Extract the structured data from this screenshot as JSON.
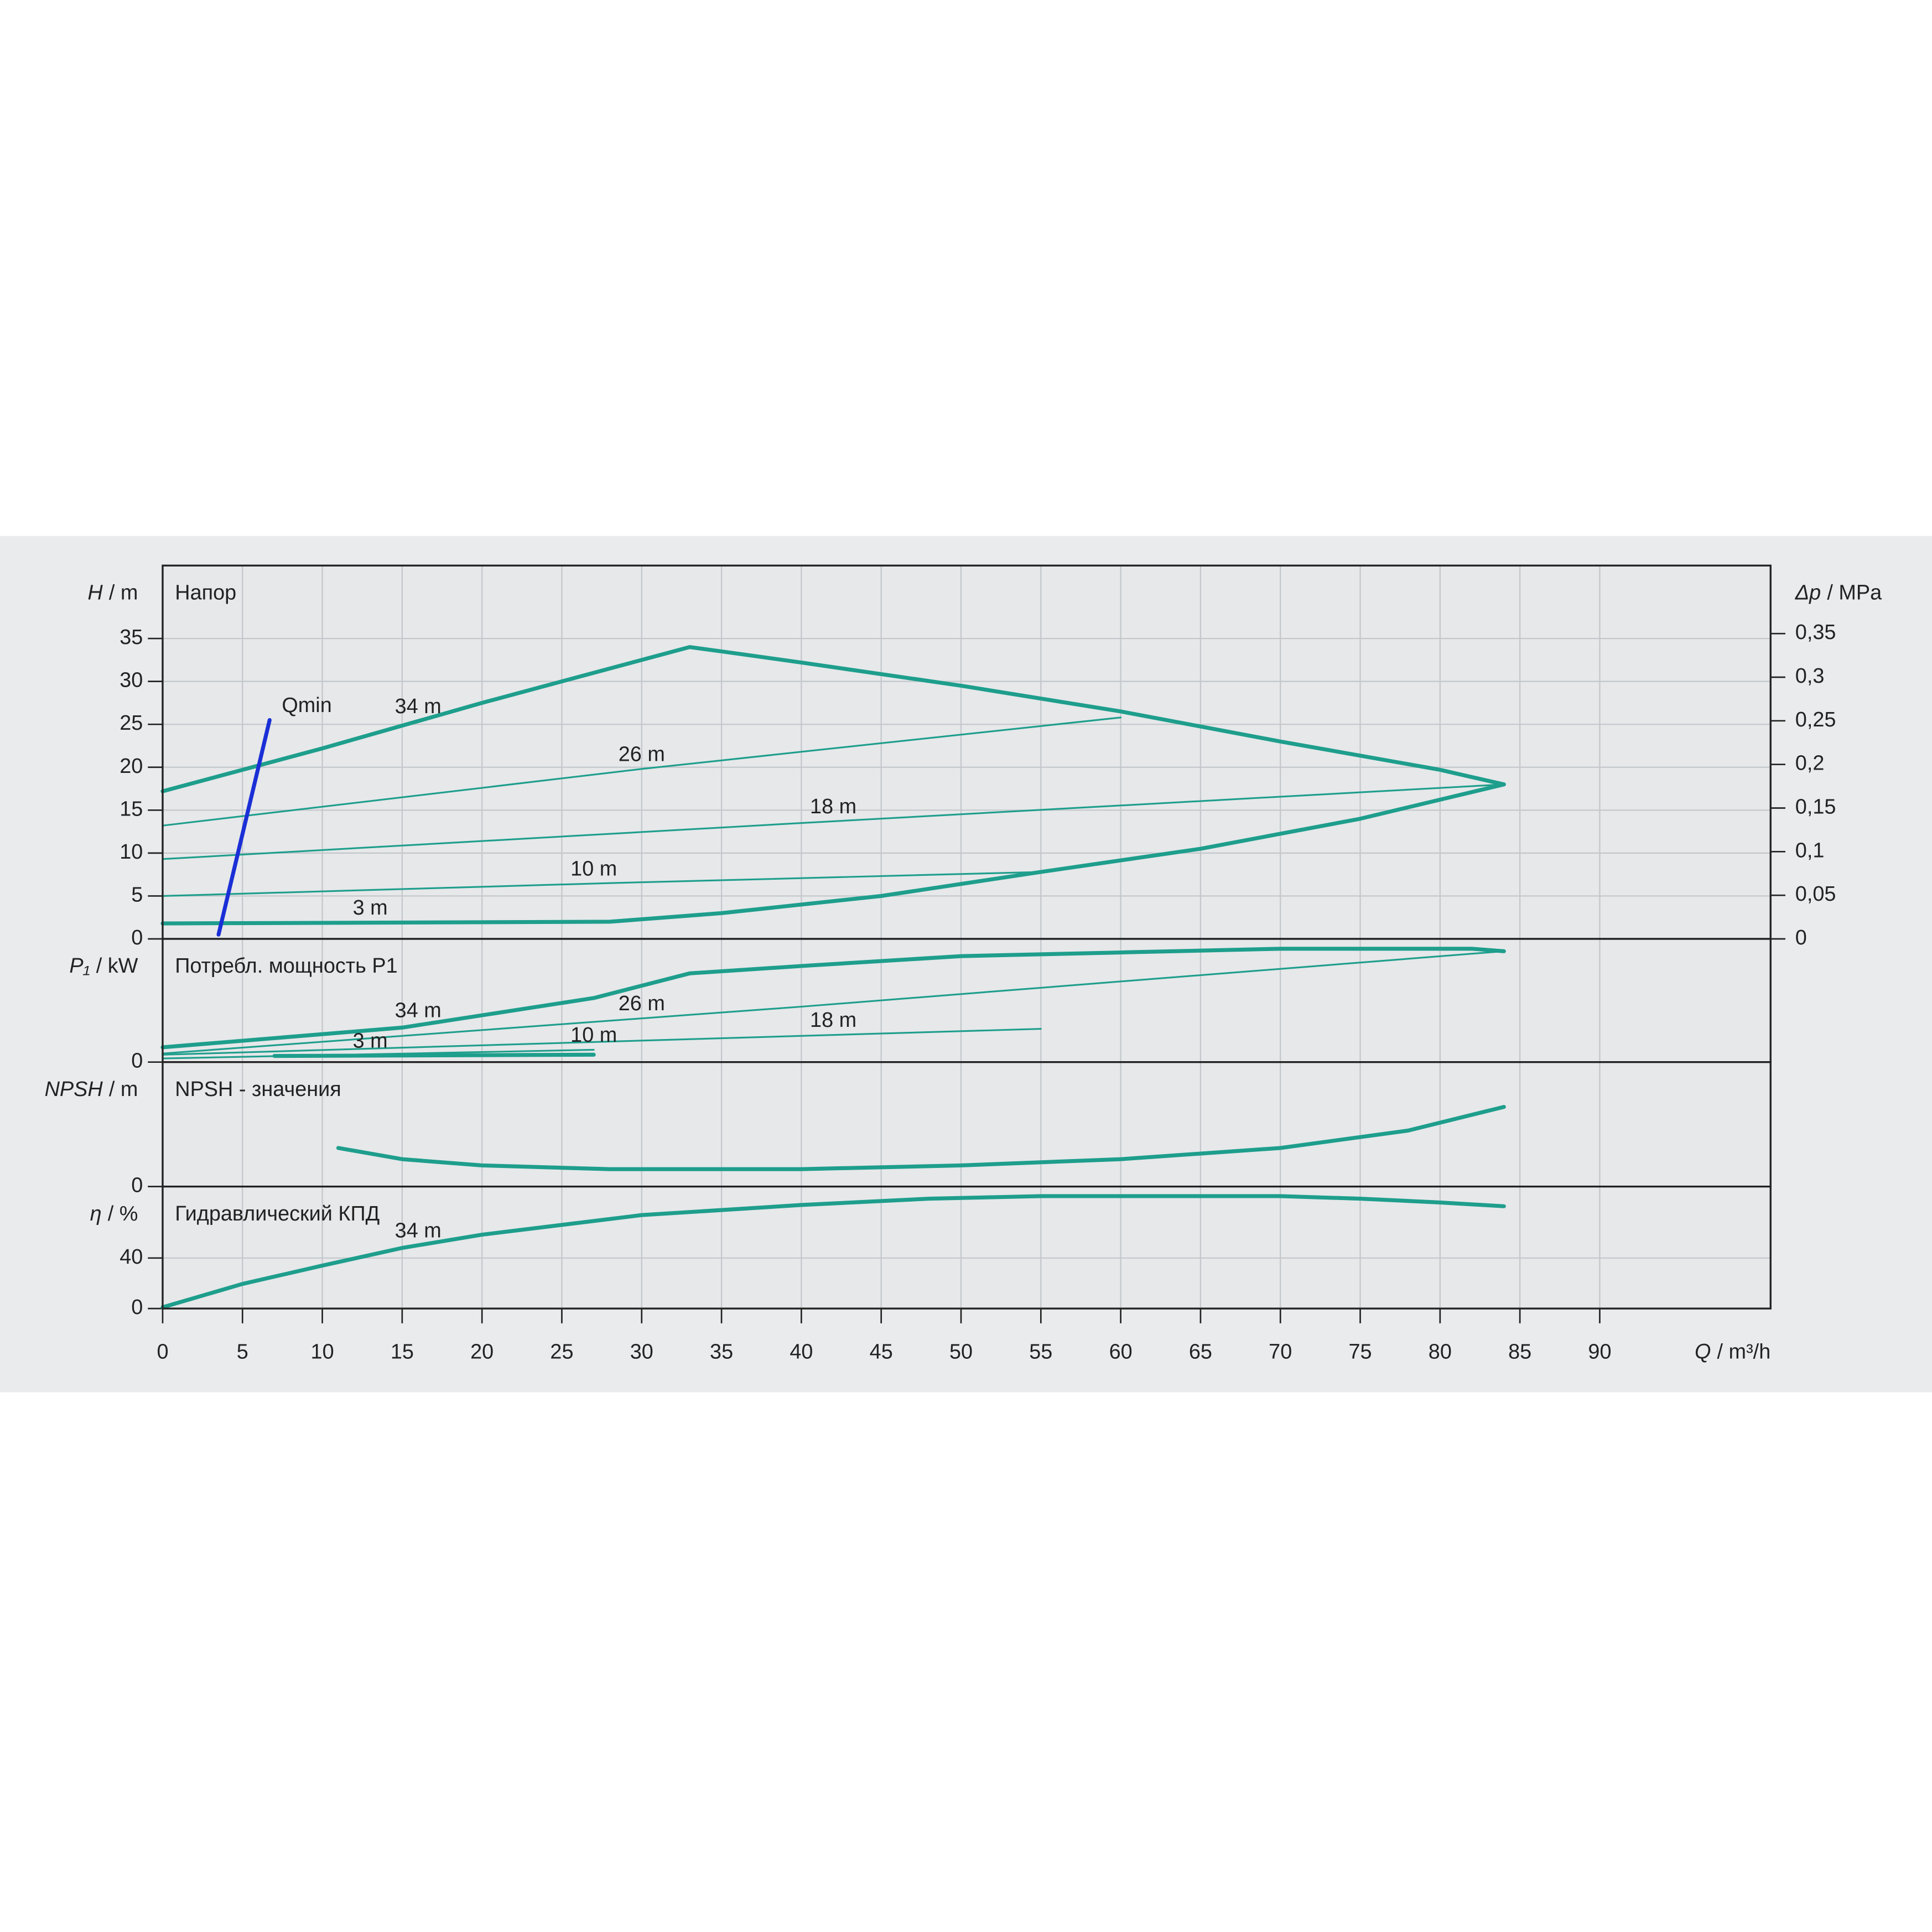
{
  "chart_data": [
    {
      "type": "line",
      "title": "Напор",
      "ylabel": {
        "symbol": "H",
        "unit": "/ m"
      },
      "y2label": {
        "symbol": "Δp",
        "unit": "/ MPa"
      },
      "ylim": [
        0,
        43.5
      ],
      "yticks": [
        0,
        5,
        10,
        15,
        20,
        25,
        30,
        35
      ],
      "y2lim": [
        0,
        0.428
      ],
      "y2ticks": [
        0,
        {
          "value": 0.05,
          "label": "0,05"
        },
        {
          "value": 0.1,
          "label": "0,1"
        },
        {
          "value": 0.15,
          "label": "0,15"
        },
        {
          "value": 0.2,
          "label": "0,2"
        },
        {
          "value": 0.25,
          "label": "0,25"
        },
        {
          "value": 0.3,
          "label": "0,3"
        },
        {
          "value": 0.35,
          "label": "0,35"
        }
      ],
      "grid": true,
      "series": [
        {
          "name": "34 m",
          "color": "#1e9e8c",
          "style": "thick",
          "x": [
            0,
            10,
            20,
            30,
            33,
            35,
            40,
            50,
            60,
            70,
            80,
            84
          ],
          "values": [
            17.2,
            22.2,
            27.5,
            32.5,
            34,
            33.5,
            32.2,
            29.5,
            26.5,
            23,
            19.7,
            18
          ]
        },
        {
          "name": "26 m",
          "color": "#1e9e8c",
          "style": "thin",
          "x": [
            0,
            30,
            60
          ],
          "values": [
            13.2,
            19.8,
            25.8
          ]
        },
        {
          "name": "18 m",
          "color": "#1e9e8c",
          "style": "thin",
          "x": [
            0,
            40,
            84
          ],
          "values": [
            9.3,
            13.5,
            18
          ]
        },
        {
          "name": "10 m",
          "color": "#1e9e8c",
          "style": "thin",
          "x": [
            0,
            28,
            55
          ],
          "values": [
            5,
            6.5,
            7.8
          ]
        },
        {
          "name": "3 m",
          "color": "#1e9e8c",
          "style": "thick",
          "x": [
            0,
            28,
            35,
            45,
            55,
            65,
            75,
            84
          ],
          "values": [
            1.8,
            2,
            3,
            5,
            7.8,
            10.5,
            14,
            18
          ]
        },
        {
          "name": "Qmin",
          "color": "#1a2fd6",
          "style": "thick",
          "x": [
            3.5,
            6.7
          ],
          "values": [
            0.5,
            25.5
          ]
        }
      ]
    },
    {
      "type": "line",
      "title": "Потребл. мощность P1",
      "ylabel": {
        "symbol": "P₁",
        "unit": "/ kW"
      },
      "ylim": [
        0,
        1
      ],
      "yticks": [
        0
      ],
      "grid": true,
      "series": [
        {
          "name": "34 m",
          "color": "#1e9e8c",
          "style": "thick",
          "x": [
            0,
            15,
            27,
            33,
            40,
            50,
            60,
            70,
            82,
            84
          ],
          "values": [
            0.12,
            0.28,
            0.52,
            0.72,
            0.78,
            0.86,
            0.89,
            0.92,
            0.92,
            0.9
          ]
        },
        {
          "name": "26 m",
          "color": "#1e9e8c",
          "style": "thin",
          "x": [
            0,
            40,
            84
          ],
          "values": [
            0.07,
            0.45,
            0.9
          ]
        },
        {
          "name": "18 m",
          "color": "#1e9e8c",
          "style": "thin",
          "x": [
            0,
            55
          ],
          "values": [
            0.06,
            0.27
          ]
        },
        {
          "name": "10 m",
          "color": "#1e9e8c",
          "style": "thin",
          "x": [
            0,
            27
          ],
          "values": [
            0.03,
            0.1
          ]
        },
        {
          "name": "3 m",
          "color": "#1e9e8c",
          "style": "thick",
          "x": [
            7,
            27
          ],
          "values": [
            0.05,
            0.06
          ]
        }
      ]
    },
    {
      "type": "line",
      "title": "NPSH - значения",
      "ylabel": {
        "symbol": "NPSH",
        "unit": "/ m"
      },
      "ylim": [
        0,
        1
      ],
      "yticks": [
        0
      ],
      "grid": true,
      "series": [
        {
          "color": "#1e9e8c",
          "style": "thick",
          "x": [
            11,
            15,
            20,
            28,
            40,
            50,
            60,
            70,
            78,
            84
          ],
          "values": [
            0.31,
            0.22,
            0.17,
            0.14,
            0.14,
            0.17,
            0.22,
            0.31,
            0.45,
            0.64
          ]
        }
      ]
    },
    {
      "type": "line",
      "title": "Гидравлический КПД",
      "ylabel": {
        "symbol": "η",
        "unit": "/ %"
      },
      "xlabel": {
        "symbol": "Q",
        "unit": "/ m³/h"
      },
      "ylim": [
        0,
        96.6
      ],
      "yticks": [
        0,
        40
      ],
      "xlim": [
        0,
        100.7
      ],
      "xticks": [
        0,
        5,
        10,
        15,
        20,
        25,
        30,
        35,
        40,
        45,
        50,
        55,
        60,
        65,
        70,
        75,
        80,
        85,
        90
      ],
      "grid": true,
      "series": [
        {
          "name": "34 m",
          "color": "#1e9e8c",
          "style": "thick",
          "x": [
            0,
            5,
            10,
            15,
            20,
            30,
            40,
            48,
            55,
            70,
            75,
            80,
            84
          ],
          "values": [
            1,
            19.5,
            34,
            48,
            58.5,
            74,
            82,
            87,
            89,
            89,
            87,
            84,
            81
          ]
        }
      ]
    }
  ]
}
